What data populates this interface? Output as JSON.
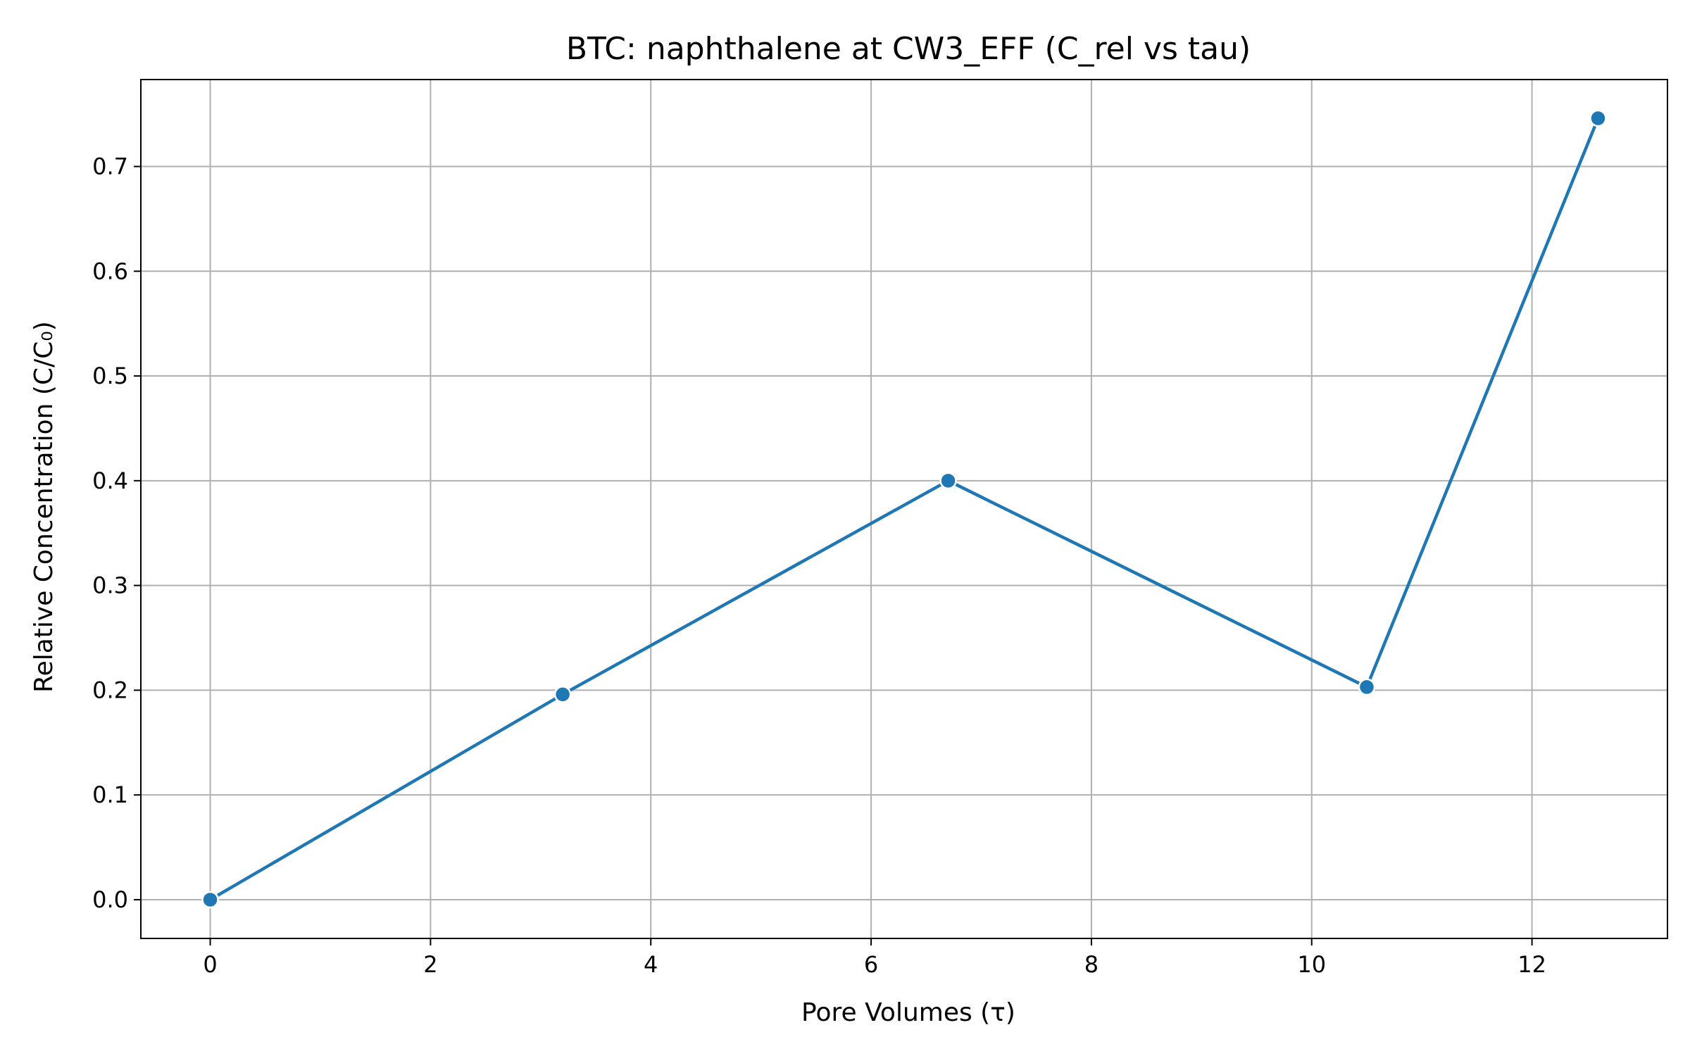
{
  "chart_data": {
    "type": "line",
    "title": "BTC: naphthalene at CW3_EFF (C_rel vs tau)",
    "xlabel": "Pore Volumes (τ)",
    "ylabel": "Relative Concentration (C/C₀)",
    "xlim": [
      -0.63,
      13.23
    ],
    "ylim": [
      -0.037,
      0.783
    ],
    "xticks": [
      0,
      2,
      4,
      6,
      8,
      10,
      12
    ],
    "yticks": [
      0.0,
      0.1,
      0.2,
      0.3,
      0.4,
      0.5,
      0.6,
      0.7
    ],
    "xtick_labels": [
      "0",
      "2",
      "4",
      "6",
      "8",
      "10",
      "12"
    ],
    "ytick_labels": [
      "0.0",
      "0.1",
      "0.2",
      "0.3",
      "0.4",
      "0.5",
      "0.6",
      "0.7"
    ],
    "grid": true,
    "legend": "none",
    "series": [
      {
        "x": [
          0.0,
          3.2,
          6.7,
          10.5,
          12.6
        ],
        "y": [
          0.0,
          0.196,
          0.4,
          0.203,
          0.746
        ],
        "color": "#1f77b4",
        "marker": "circle"
      }
    ]
  }
}
